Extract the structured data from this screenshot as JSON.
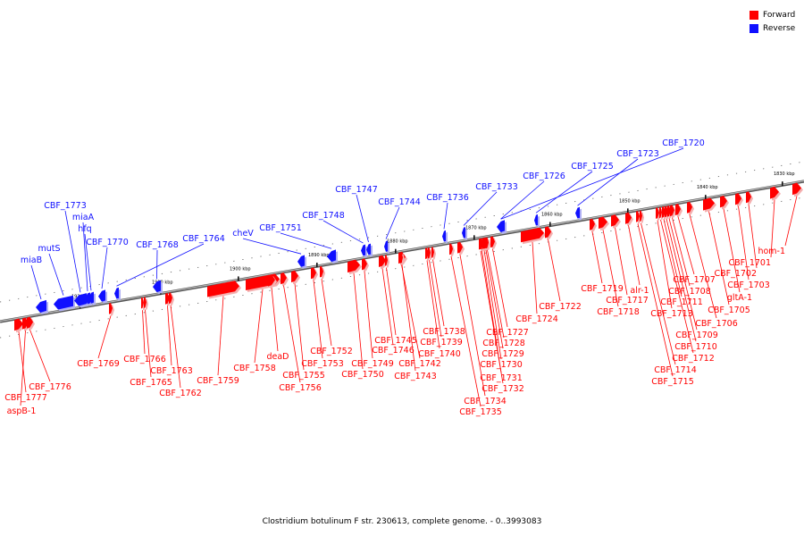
{
  "legend": {
    "forward_label": "Forward",
    "reverse_label": "Reverse",
    "forward_color": "#ff0000",
    "reverse_color": "#1010ff"
  },
  "caption": "Clostridium botulinum F str. 230613, complete genome. - 0..3993083",
  "ticks": [
    "1920 kbp",
    "1910 kbp",
    "1900 kbp",
    "1890 kbp",
    "1880 kbp",
    "1870 kbp",
    "1860 kbp",
    "1850 kbp",
    "1840 kbp",
    "1830 kbp"
  ],
  "genes_reverse": [
    "miaB",
    "mutS",
    "CBF_1773",
    "miaA",
    "hfq",
    "CBF_1770",
    "CBF_1768",
    "CBF_1764",
    "cheV",
    "CBF_1751",
    "CBF_1748",
    "CBF_1747",
    "CBF_1744",
    "CBF_1736",
    "CBF_1733",
    "CBF_1726",
    "CBF_1725",
    "CBF_1723",
    "CBF_1720"
  ],
  "genes_forward": [
    "CBF_1777",
    "aspB-1",
    "CBF_1776",
    "CBF_1769",
    "CBF_1766",
    "CBF_1765",
    "CBF_1763",
    "CBF_1762",
    "CBF_1759",
    "CBF_1758",
    "deaD",
    "CBF_1756",
    "CBF_1755",
    "CBF_1753",
    "CBF_1752",
    "CBF_1750",
    "CBF_1749",
    "CBF_1746",
    "CBF_1745",
    "CBF_1743",
    "CBF_1742",
    "CBF_1740",
    "CBF_1739",
    "CBF_1738",
    "CBF_1735",
    "CBF_1734",
    "CBF_1732",
    "CBF_1731",
    "CBF_1730",
    "CBF_1729",
    "CBF_1728",
    "CBF_1727",
    "CBF_1724",
    "CBF_1722",
    "CBF_1719",
    "CBF_1718",
    "CBF_1717",
    "alr-1",
    "CBF_1715",
    "CBF_1714",
    "CBF_1713",
    "CBF_1712",
    "CBF_1711",
    "CBF_1710",
    "CBF_1709",
    "CBF_1708",
    "CBF_1707",
    "CBF_1706",
    "CBF_1705",
    "gltA-1",
    "CBF_1703",
    "CBF_1702",
    "CBF_1701",
    "hom-1"
  ]
}
